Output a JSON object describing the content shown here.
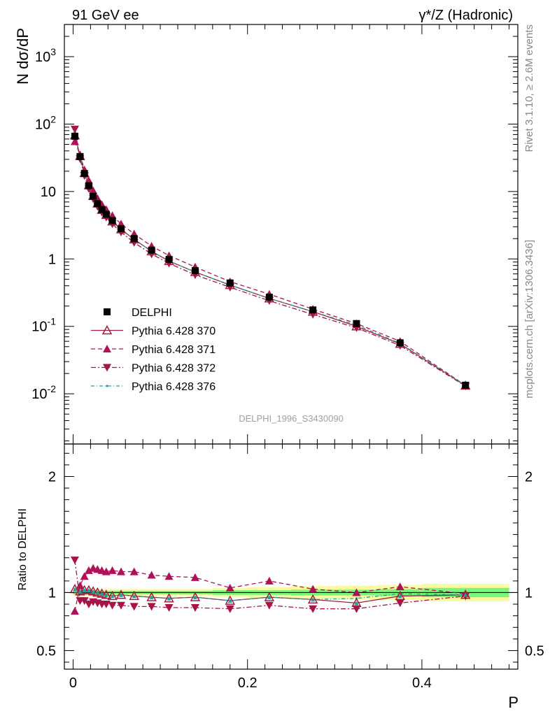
{
  "header": {
    "left_title": "91 GeV ee",
    "right_title": "γ*/Z (Hadronic)"
  },
  "side_labels": {
    "rivet": "Rivet 3.1.10, ≥ 2.6M events",
    "mcplots": "mcplots.cern.ch [arXiv:1306.3436]"
  },
  "analysis_label": "DELPHI_1996_S3430090",
  "colors": {
    "data": "#000000",
    "mc370": "#a01f3a",
    "mc371": "#b0105a",
    "mc372": "#a81448",
    "mc376": "#20a0a0",
    "band_green": "#7cf57c",
    "band_yellow": "#fafa9e"
  },
  "chart_data": [
    {
      "type": "scatter",
      "panel": "main",
      "title": "",
      "ylabel": "N dσ/dP",
      "xlabel": "P",
      "yscale": "log",
      "ylim": [
        0.0018,
        3000
      ],
      "xlim": [
        -0.01,
        0.51
      ],
      "y_tick_labels": [
        "10^{-2}",
        "10^{-1}",
        "1",
        "10",
        "10^{2}",
        "10^{3}"
      ],
      "legend_position": "center-left",
      "x": [
        0.002,
        0.008,
        0.013,
        0.018,
        0.023,
        0.028,
        0.033,
        0.038,
        0.045,
        0.055,
        0.07,
        0.09,
        0.11,
        0.14,
        0.18,
        0.225,
        0.275,
        0.325,
        0.375,
        0.45
      ],
      "series": [
        {
          "name": "DELPHI",
          "marker": "square",
          "values": [
            66,
            33,
            18.5,
            12.2,
            8.5,
            6.6,
            5.4,
            4.6,
            3.7,
            2.8,
            2.0,
            1.35,
            0.98,
            0.67,
            0.44,
            0.27,
            0.175,
            0.11,
            0.057,
            0.0134
          ]
        },
        {
          "name": "Pythia 6.428 370",
          "marker": "open-triangle",
          "line": "solid",
          "values": [
            68,
            33.5,
            18.8,
            12.4,
            8.6,
            6.65,
            5.35,
            4.5,
            3.6,
            2.75,
            1.95,
            1.3,
            0.93,
            0.64,
            0.41,
            0.26,
            0.165,
            0.1,
            0.055,
            0.0132
          ]
        },
        {
          "name": "Pythia 6.428 371",
          "marker": "triangle",
          "line": "dashed",
          "values": [
            55,
            35,
            21,
            14.5,
            10.3,
            7.9,
            6.4,
            5.4,
            4.4,
            3.3,
            2.35,
            1.55,
            1.12,
            0.76,
            0.46,
            0.3,
            0.18,
            0.11,
            0.06,
            0.0133
          ]
        },
        {
          "name": "Pythia 6.428 372",
          "marker": "down-triangle",
          "line": "dash-dot",
          "values": [
            84,
            30.5,
            17.2,
            11,
            7.8,
            6,
            4.9,
            4.15,
            3.3,
            2.5,
            1.75,
            1.18,
            0.86,
            0.58,
            0.38,
            0.24,
            0.15,
            0.095,
            0.052,
            0.013
          ]
        },
        {
          "name": "Pythia 6.428 376",
          "marker": "dot",
          "line": "dash-dot-teal",
          "values": [
            68,
            33.5,
            18.8,
            12.4,
            8.6,
            6.65,
            5.35,
            4.5,
            3.6,
            2.75,
            1.95,
            1.3,
            0.93,
            0.64,
            0.41,
            0.26,
            0.165,
            0.105,
            0.056,
            0.0132
          ]
        }
      ]
    },
    {
      "type": "line",
      "panel": "ratio",
      "ylabel": "Ratio to DELPHI",
      "xlabel": "P",
      "ylim": [
        0.34,
        2.28
      ],
      "xlim": [
        -0.01,
        0.51
      ],
      "y_tick_labels": [
        "0.5",
        "1",
        "2"
      ],
      "x_tick_labels": [
        "0",
        "0.2",
        "0.4"
      ],
      "x": [
        0.002,
        0.008,
        0.013,
        0.018,
        0.023,
        0.028,
        0.033,
        0.038,
        0.045,
        0.055,
        0.07,
        0.09,
        0.11,
        0.14,
        0.18,
        0.225,
        0.275,
        0.325,
        0.375,
        0.45
      ],
      "bands": {
        "x_edges": [
          0.0,
          0.005,
          0.01,
          0.015,
          0.02,
          0.025,
          0.03,
          0.035,
          0.04,
          0.05,
          0.06,
          0.08,
          0.1,
          0.12,
          0.16,
          0.2,
          0.25,
          0.3,
          0.35,
          0.4,
          0.5
        ],
        "green_halfwidth": [
          0.015,
          0.015,
          0.015,
          0.015,
          0.015,
          0.015,
          0.015,
          0.015,
          0.015,
          0.015,
          0.015,
          0.015,
          0.015,
          0.015,
          0.02,
          0.02,
          0.025,
          0.025,
          0.03,
          0.04
        ],
        "yellow_halfwidth": [
          0.03,
          0.03,
          0.03,
          0.03,
          0.03,
          0.03,
          0.03,
          0.03,
          0.03,
          0.03,
          0.03,
          0.03,
          0.03,
          0.03,
          0.04,
          0.045,
          0.055,
          0.06,
          0.065,
          0.075
        ]
      },
      "series": [
        {
          "name": "Pythia 6.428 370",
          "values": [
            1.03,
            1.01,
            1.02,
            1.02,
            1.01,
            1.0,
            0.99,
            0.98,
            0.97,
            0.98,
            0.97,
            0.96,
            0.95,
            0.96,
            0.93,
            0.96,
            0.94,
            0.91,
            0.97,
            0.98
          ]
        },
        {
          "name": "Pythia 6.428 371",
          "values": [
            0.84,
            1.06,
            1.14,
            1.19,
            1.21,
            1.2,
            1.19,
            1.18,
            1.19,
            1.18,
            1.18,
            1.15,
            1.14,
            1.13,
            1.04,
            1.1,
            1.03,
            1.0,
            1.05,
            0.99
          ]
        },
        {
          "name": "Pythia 6.428 372",
          "values": [
            1.28,
            0.93,
            0.93,
            0.9,
            0.92,
            0.91,
            0.9,
            0.9,
            0.89,
            0.89,
            0.88,
            0.88,
            0.87,
            0.87,
            0.86,
            0.89,
            0.86,
            0.86,
            0.91,
            0.97
          ]
        },
        {
          "name": "Pythia 6.428 376",
          "values": [
            1.03,
            1.01,
            1.02,
            1.02,
            1.01,
            1.0,
            0.99,
            0.98,
            0.97,
            0.98,
            0.97,
            0.96,
            0.95,
            0.96,
            0.93,
            0.96,
            0.94,
            0.95,
            0.99,
            0.98
          ]
        }
      ]
    }
  ]
}
